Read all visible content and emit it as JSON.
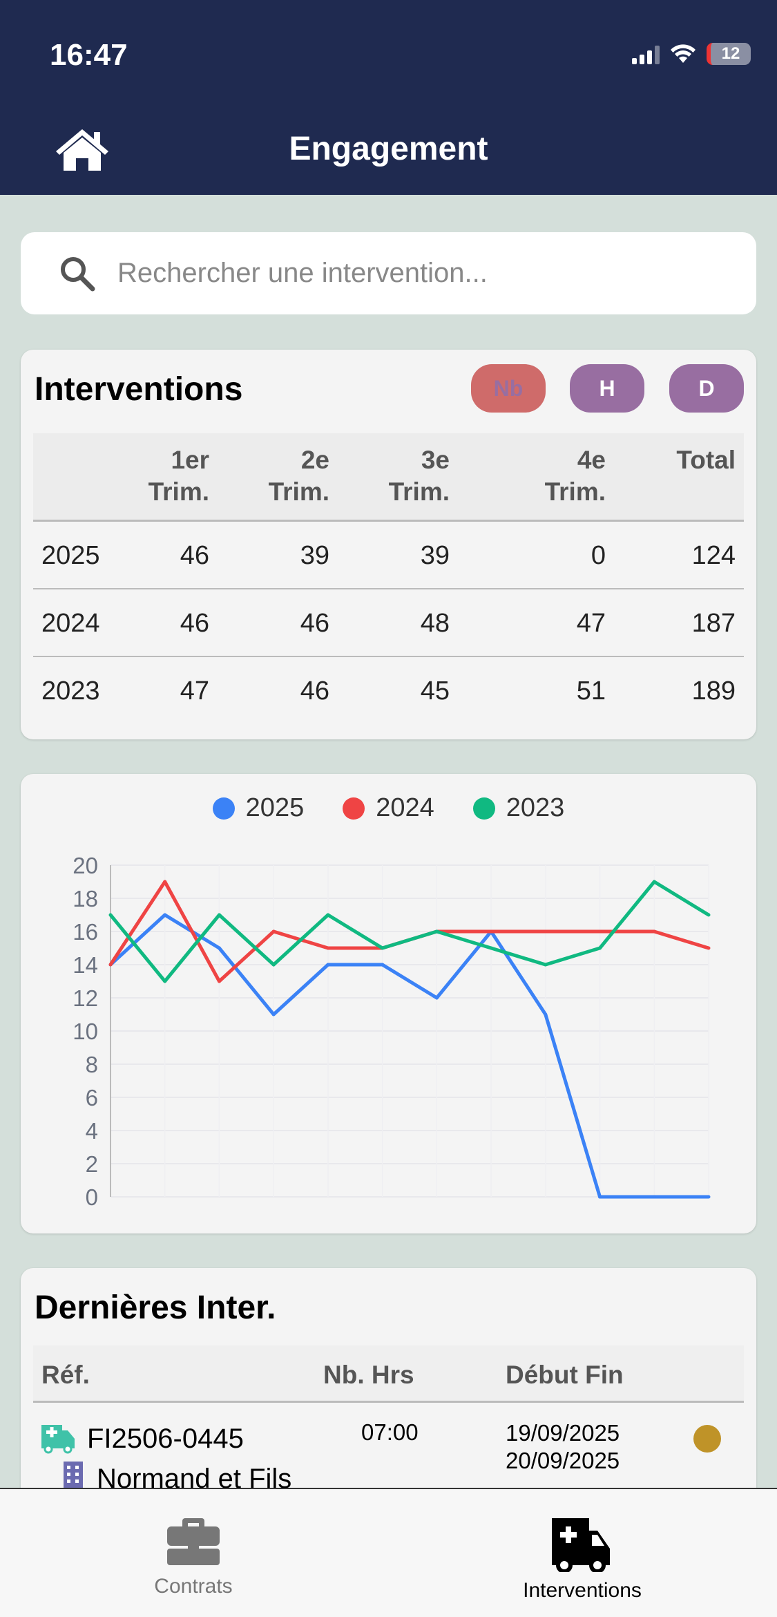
{
  "status_bar": {
    "time": "16:47",
    "battery": "12"
  },
  "header": {
    "title": "Engagement"
  },
  "search": {
    "placeholder": "Rechercher une intervention..."
  },
  "interventions": {
    "title": "Interventions",
    "toggles": [
      {
        "label": "Nb",
        "active": true
      },
      {
        "label": "H",
        "active": false
      },
      {
        "label": "D",
        "active": false
      }
    ],
    "columns": [
      "",
      "1er Trim.",
      "2e Trim.",
      "3e Trim.",
      "4e Trim.",
      "Total"
    ],
    "col_lines": [
      [
        "1er",
        "Trim."
      ],
      [
        "2e",
        "Trim."
      ],
      [
        "3e",
        "Trim."
      ],
      [
        "4e",
        "Trim."
      ],
      [
        "Total",
        ""
      ]
    ],
    "rows": [
      [
        "2025",
        "46",
        "39",
        "39",
        "0",
        "124"
      ],
      [
        "2024",
        "46",
        "46",
        "48",
        "47",
        "187"
      ],
      [
        "2023",
        "47",
        "46",
        "45",
        "51",
        "189"
      ]
    ]
  },
  "chart_data": {
    "type": "line",
    "title": "",
    "xlabel": "",
    "ylabel": "",
    "ylim": [
      0,
      20
    ],
    "yticks": [
      "0",
      "2",
      "4",
      "6",
      "8",
      "10",
      "12",
      "14",
      "16",
      "18",
      "20"
    ],
    "x": [
      1,
      2,
      3,
      4,
      5,
      6,
      7,
      8,
      9,
      10,
      11,
      12
    ],
    "legend_position": "top",
    "series": [
      {
        "name": "2025",
        "color": "#3b82f6",
        "values": [
          14,
          17,
          15,
          11,
          14,
          14,
          12,
          16,
          11,
          0,
          0,
          0
        ]
      },
      {
        "name": "2024",
        "color": "#ef4444",
        "values": [
          14,
          19,
          13,
          16,
          15,
          15,
          16,
          16,
          16,
          16,
          16,
          15
        ]
      },
      {
        "name": "2023",
        "color": "#10b981",
        "values": [
          17,
          13,
          17,
          14,
          17,
          15,
          16,
          15,
          14,
          15,
          19,
          17
        ]
      }
    ]
  },
  "latest": {
    "title": "Dernières Inter.",
    "columns": {
      "ref": "Réf.",
      "hours": "Nb. Hrs",
      "dates": "Début Fin"
    },
    "rows": [
      {
        "ref": "FI2506-0445",
        "company": "Normand et Fils",
        "hours": "07:00",
        "start": "19/09/2025",
        "end": "20/09/2025",
        "status_color": "#bf9328"
      }
    ]
  },
  "tabbar": {
    "tabs": [
      {
        "label": "Contrats"
      },
      {
        "label": "Interventions"
      }
    ]
  }
}
